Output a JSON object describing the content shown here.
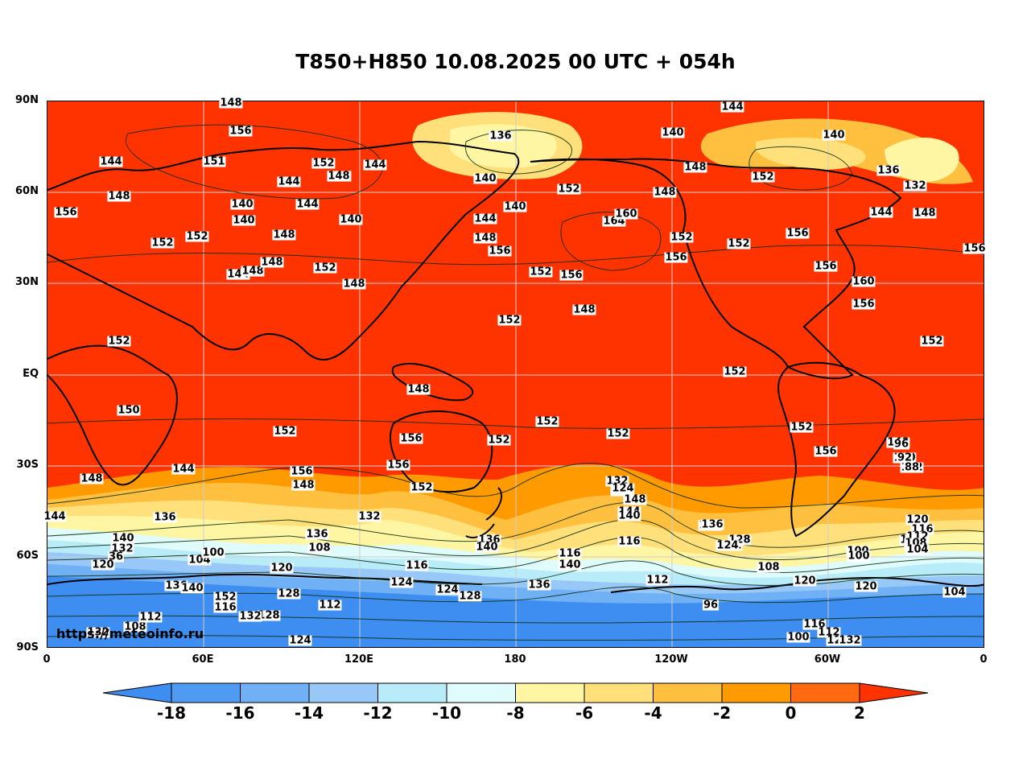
{
  "title": "T850+H850 10.08.2025 00 UTC + 054h",
  "credit": "https://meteoinfo.ru",
  "axes": {
    "lat_labels": [
      "90N",
      "60N",
      "30N",
      "EQ",
      "30S",
      "60S",
      "90S"
    ],
    "lon_labels": [
      "0",
      "60E",
      "120E",
      "180",
      "120W",
      "60W",
      "0"
    ]
  },
  "colorbar": {
    "ticks": [
      "-18",
      "-16",
      "-14",
      "-12",
      "-10",
      "-8",
      "-6",
      "-4",
      "-2",
      "0",
      "2"
    ],
    "colors": [
      "#3d8ef0",
      "#4f9bf2",
      "#70b0f5",
      "#97c8f8",
      "#b8ecf8",
      "#dffbfb",
      "#fff6a4",
      "#ffe07a",
      "#ffc040",
      "#ff9a00",
      "#ff6a10",
      "#ff3300"
    ]
  },
  "contour_labels": [
    "148",
    "156",
    "144",
    "151",
    "152",
    "148",
    "144",
    "144",
    "148",
    "156",
    "140",
    "140",
    "144",
    "140",
    "148",
    "152",
    "152",
    "148",
    "144",
    "148",
    "152",
    "148",
    "148",
    "136",
    "140",
    "144",
    "148",
    "140",
    "156",
    "152",
    "164",
    "160",
    "152",
    "156",
    "156",
    "152",
    "144",
    "148",
    "152",
    "148",
    "140",
    "152",
    "156",
    "156",
    "140",
    "136",
    "132",
    "144",
    "148",
    "156",
    "160",
    "156",
    "152",
    "152",
    "152",
    "148",
    "150",
    "152",
    "148",
    "152",
    "156",
    "156",
    "152",
    "148",
    "152",
    "156",
    "152",
    "152",
    "152",
    "148",
    "144",
    "152",
    "156",
    "140",
    "136",
    "148",
    "144",
    "132",
    "140",
    "136",
    "132",
    "36",
    "120",
    "116",
    "108",
    "104",
    "100",
    "120",
    "116",
    "124",
    "128",
    "112",
    "124",
    "128",
    "136",
    "140",
    "116",
    "112",
    "96",
    "120",
    "108",
    "100",
    "100",
    "104",
    "120",
    "116",
    "112",
    "116",
    "104",
    "100",
    "108",
    "112",
    "124",
    "128",
    "116",
    "136",
    "140",
    "132",
    "132",
    "124",
    "128",
    "132",
    "136",
    "140",
    "132",
    "128",
    "124",
    "148",
    "144",
    "140",
    "144",
    "136",
    "132",
    "128",
    "124",
    "120",
    "116",
    "112",
    "108",
    "104",
    "100",
    "96",
    "92",
    "88",
    "152",
    "148",
    "144",
    "140",
    "136",
    "132"
  ]
}
